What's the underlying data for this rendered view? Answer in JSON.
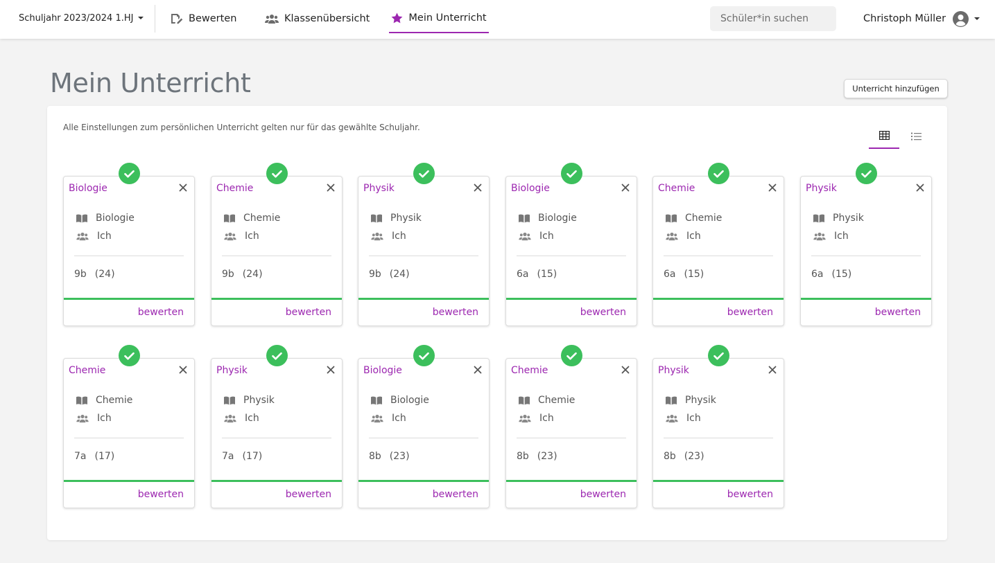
{
  "nav": {
    "year": "Schuljahr 2023/2024 1.HJ",
    "bewerten": "Bewerten",
    "klassen": "Klassenübersicht",
    "mein": "Mein Unterricht",
    "search_placeholder": "Schüler*in suchen",
    "user": "Christoph Müller"
  },
  "page": {
    "title": "Mein Unterricht",
    "add_button": "Unterricht hinzufügen",
    "info": "Alle Einstellungen zum persönlichen Unterricht gelten nur für das gewählte Schuljahr."
  },
  "colors": {
    "accent": "#9c27b0",
    "success": "#3cbf5c"
  },
  "cards": [
    {
      "title": "Biologie",
      "subject": "Biologie",
      "teacher": "Ich",
      "klasse": "9b",
      "count": "(24)",
      "action": "bewerten"
    },
    {
      "title": "Chemie",
      "subject": "Chemie",
      "teacher": "Ich",
      "klasse": "9b",
      "count": "(24)",
      "action": "bewerten"
    },
    {
      "title": "Physik",
      "subject": "Physik",
      "teacher": "Ich",
      "klasse": "9b",
      "count": "(24)",
      "action": "bewerten"
    },
    {
      "title": "Biologie",
      "subject": "Biologie",
      "teacher": "Ich",
      "klasse": "6a",
      "count": "(15)",
      "action": "bewerten"
    },
    {
      "title": "Chemie",
      "subject": "Chemie",
      "teacher": "Ich",
      "klasse": "6a",
      "count": "(15)",
      "action": "bewerten"
    },
    {
      "title": "Physik",
      "subject": "Physik",
      "teacher": "Ich",
      "klasse": "6a",
      "count": "(15)",
      "action": "bewerten"
    },
    {
      "title": "Chemie",
      "subject": "Chemie",
      "teacher": "Ich",
      "klasse": "7a",
      "count": "(17)",
      "action": "bewerten"
    },
    {
      "title": "Physik",
      "subject": "Physik",
      "teacher": "Ich",
      "klasse": "7a",
      "count": "(17)",
      "action": "bewerten"
    },
    {
      "title": "Biologie",
      "subject": "Biologie",
      "teacher": "Ich",
      "klasse": "8b",
      "count": "(23)",
      "action": "bewerten"
    },
    {
      "title": "Chemie",
      "subject": "Chemie",
      "teacher": "Ich",
      "klasse": "8b",
      "count": "(23)",
      "action": "bewerten"
    },
    {
      "title": "Physik",
      "subject": "Physik",
      "teacher": "Ich",
      "klasse": "8b",
      "count": "(23)",
      "action": "bewerten"
    }
  ]
}
